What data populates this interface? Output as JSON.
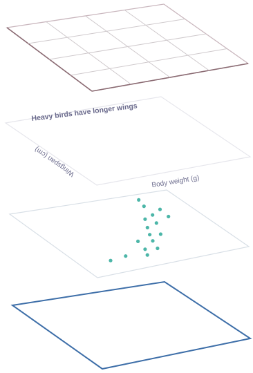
{
  "layers": {
    "grid": {
      "label": "grid-layer",
      "edge_color": "#c9b6bd",
      "front_edge_color": "#8a6a72",
      "cell_line_color": "#cfc9cc",
      "rows": 4,
      "cols": 4
    },
    "labels": {
      "title": "Heavy birds have longer wings",
      "xlabel": "Body weight (g)",
      "ylabel": "Wingspan (cm)",
      "text_color": "#6a6a8c",
      "edge_color": "#e6e6ec"
    },
    "marks": {
      "edge_color": "#d8dfe6",
      "point_color": "#4cb6a8"
    },
    "frame": {
      "edge_color": "#3d6ea8"
    }
  },
  "chart_data": {
    "type": "scatter",
    "title": "Heavy birds have longer wings",
    "xlabel": "Body weight (g)",
    "ylabel": "Wingspan (cm)",
    "grid": true,
    "points": [
      {
        "u": 0.19,
        "v": 0.18
      },
      {
        "u": 0.3,
        "v": 0.2
      },
      {
        "u": 0.42,
        "v": 0.16
      },
      {
        "u": 0.45,
        "v": 0.24
      },
      {
        "u": 0.52,
        "v": 0.22
      },
      {
        "u": 0.47,
        "v": 0.36
      },
      {
        "u": 0.55,
        "v": 0.33
      },
      {
        "u": 0.58,
        "v": 0.42
      },
      {
        "u": 0.64,
        "v": 0.4
      },
      {
        "u": 0.62,
        "v": 0.52
      },
      {
        "u": 0.7,
        "v": 0.56
      },
      {
        "u": 0.67,
        "v": 0.64
      },
      {
        "u": 0.74,
        "v": 0.68
      },
      {
        "u": 0.81,
        "v": 0.62
      },
      {
        "u": 0.82,
        "v": 0.74
      },
      {
        "u": 0.76,
        "v": 0.82
      },
      {
        "u": 0.78,
        "v": 0.92
      }
    ]
  }
}
